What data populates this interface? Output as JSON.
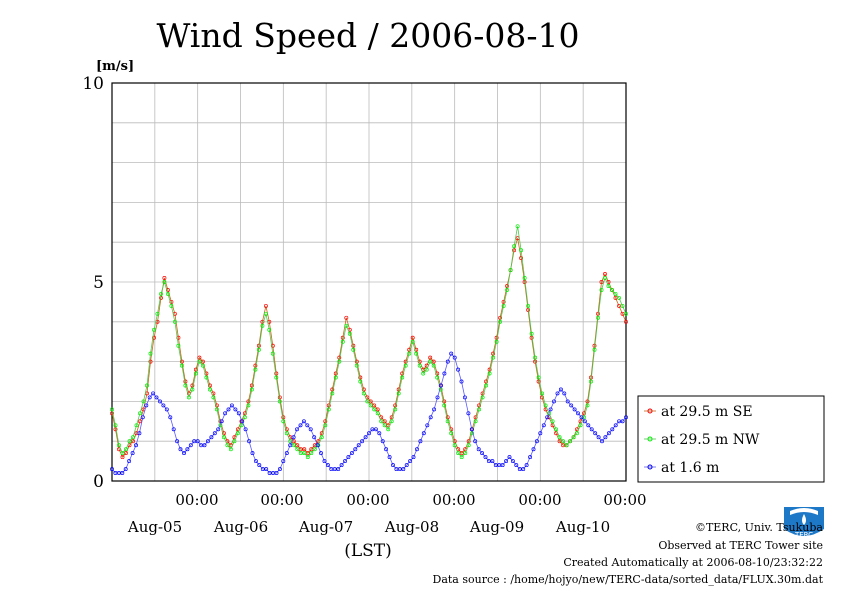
{
  "chart_data": {
    "type": "line",
    "title": "Wind Speed / 2006-08-10",
    "ylabel_unit": "[m/s]",
    "xlabel": "(LST)",
    "ylim": [
      0,
      10
    ],
    "y_ticks": [
      "0",
      "5",
      "10"
    ],
    "x_range_days": [
      0,
      6
    ],
    "x_major_ticks": [
      {
        "time": "00:00",
        "date": "Aug-05"
      },
      {
        "time": "00:00",
        "date": "Aug-06"
      },
      {
        "time": "00:00",
        "date": "Aug-07"
      },
      {
        "time": "00:00",
        "date": "Aug-08"
      },
      {
        "time": "00:00",
        "date": "Aug-09"
      },
      {
        "time": "00:00",
        "date": "Aug-10"
      }
    ],
    "grid": true,
    "legend_position": "right",
    "series": [
      {
        "name": "at 29.5 m SE",
        "color": "#ff0000",
        "values": [
          1.7,
          1.3,
          0.8,
          0.6,
          0.7,
          0.9,
          1.0,
          1.2,
          1.5,
          1.8,
          2.2,
          3.0,
          3.6,
          4.0,
          4.6,
          5.1,
          4.8,
          4.5,
          4.2,
          3.6,
          3.0,
          2.5,
          2.2,
          2.4,
          2.8,
          3.1,
          3.0,
          2.7,
          2.4,
          2.2,
          1.9,
          1.5,
          1.2,
          1.0,
          0.9,
          1.1,
          1.3,
          1.5,
          1.7,
          2.0,
          2.4,
          2.9,
          3.4,
          4.0,
          4.4,
          4.0,
          3.4,
          2.7,
          2.1,
          1.6,
          1.3,
          1.1,
          1.0,
          0.9,
          0.8,
          0.8,
          0.7,
          0.8,
          0.9,
          1.0,
          1.2,
          1.5,
          1.9,
          2.3,
          2.7,
          3.1,
          3.6,
          4.1,
          3.8,
          3.4,
          3.0,
          2.6,
          2.3,
          2.1,
          2.0,
          1.9,
          1.8,
          1.6,
          1.5,
          1.4,
          1.6,
          1.9,
          2.3,
          2.7,
          3.0,
          3.3,
          3.6,
          3.3,
          3.0,
          2.8,
          2.9,
          3.1,
          3.0,
          2.7,
          2.4,
          2.0,
          1.6,
          1.3,
          1.0,
          0.8,
          0.7,
          0.8,
          1.0,
          1.3,
          1.6,
          1.9,
          2.2,
          2.5,
          2.8,
          3.2,
          3.6,
          4.1,
          4.5,
          4.9,
          5.3,
          5.8,
          6.1,
          5.6,
          5.0,
          4.3,
          3.6,
          3.0,
          2.5,
          2.1,
          1.8,
          1.6,
          1.4,
          1.2,
          1.0,
          0.9,
          0.9,
          1.0,
          1.1,
          1.3,
          1.5,
          1.7,
          2.0,
          2.6,
          3.4,
          4.2,
          5.0,
          5.2,
          5.0,
          4.8,
          4.6,
          4.4,
          4.2,
          4.0
        ]
      },
      {
        "name": "at 29.5 m NW",
        "color": "#00ee00",
        "values": [
          1.8,
          1.4,
          0.9,
          0.7,
          0.8,
          1.0,
          1.1,
          1.4,
          1.7,
          2.0,
          2.4,
          3.2,
          3.8,
          4.2,
          4.7,
          5.0,
          4.7,
          4.4,
          4.0,
          3.4,
          2.9,
          2.4,
          2.1,
          2.3,
          2.7,
          3.0,
          2.9,
          2.6,
          2.3,
          2.1,
          1.8,
          1.4,
          1.1,
          0.9,
          0.8,
          1.0,
          1.2,
          1.4,
          1.6,
          1.9,
          2.3,
          2.8,
          3.3,
          3.9,
          4.2,
          3.8,
          3.2,
          2.6,
          2.0,
          1.5,
          1.2,
          1.0,
          0.9,
          0.8,
          0.7,
          0.7,
          0.6,
          0.7,
          0.8,
          0.9,
          1.1,
          1.4,
          1.8,
          2.2,
          2.6,
          3.0,
          3.5,
          3.9,
          3.7,
          3.3,
          2.9,
          2.5,
          2.2,
          2.0,
          1.9,
          1.8,
          1.7,
          1.5,
          1.4,
          1.3,
          1.5,
          1.8,
          2.2,
          2.6,
          2.9,
          3.2,
          3.5,
          3.2,
          2.9,
          2.7,
          2.8,
          3.0,
          2.9,
          2.6,
          2.3,
          1.9,
          1.5,
          1.2,
          0.9,
          0.7,
          0.6,
          0.7,
          0.9,
          1.2,
          1.5,
          1.8,
          2.1,
          2.4,
          2.7,
          3.1,
          3.5,
          4.0,
          4.4,
          4.8,
          5.3,
          5.9,
          6.4,
          5.8,
          5.1,
          4.4,
          3.7,
          3.1,
          2.6,
          2.2,
          1.9,
          1.7,
          1.5,
          1.3,
          1.1,
          1.0,
          0.9,
          1.0,
          1.1,
          1.2,
          1.4,
          1.6,
          1.9,
          2.5,
          3.3,
          4.1,
          4.8,
          5.1,
          4.9,
          4.8,
          4.7,
          4.6,
          4.4,
          4.2
        ]
      },
      {
        "name": "at 1.6 m",
        "color": "#0000ff",
        "values": [
          0.3,
          0.2,
          0.2,
          0.2,
          0.3,
          0.5,
          0.7,
          0.9,
          1.2,
          1.6,
          1.9,
          2.1,
          2.2,
          2.1,
          2.0,
          1.9,
          1.8,
          1.6,
          1.3,
          1.0,
          0.8,
          0.7,
          0.8,
          0.9,
          1.0,
          1.0,
          0.9,
          0.9,
          1.0,
          1.1,
          1.2,
          1.3,
          1.5,
          1.7,
          1.8,
          1.9,
          1.8,
          1.7,
          1.5,
          1.3,
          1.0,
          0.7,
          0.5,
          0.4,
          0.3,
          0.3,
          0.2,
          0.2,
          0.2,
          0.3,
          0.5,
          0.7,
          0.9,
          1.1,
          1.3,
          1.4,
          1.5,
          1.4,
          1.3,
          1.1,
          0.9,
          0.7,
          0.5,
          0.4,
          0.3,
          0.3,
          0.3,
          0.4,
          0.5,
          0.6,
          0.7,
          0.8,
          0.9,
          1.0,
          1.1,
          1.2,
          1.3,
          1.3,
          1.2,
          1.0,
          0.8,
          0.6,
          0.4,
          0.3,
          0.3,
          0.3,
          0.4,
          0.5,
          0.6,
          0.8,
          1.0,
          1.2,
          1.4,
          1.6,
          1.8,
          2.1,
          2.4,
          2.7,
          3.0,
          3.2,
          3.1,
          2.8,
          2.5,
          2.1,
          1.7,
          1.3,
          1.0,
          0.8,
          0.7,
          0.6,
          0.5,
          0.5,
          0.4,
          0.4,
          0.4,
          0.5,
          0.6,
          0.5,
          0.4,
          0.3,
          0.3,
          0.4,
          0.6,
          0.8,
          1.0,
          1.2,
          1.4,
          1.6,
          1.8,
          2.0,
          2.2,
          2.3,
          2.2,
          2.0,
          1.9,
          1.8,
          1.7,
          1.6,
          1.5,
          1.4,
          1.3,
          1.2,
          1.1,
          1.0,
          1.1,
          1.2,
          1.3,
          1.4,
          1.5,
          1.5,
          1.6
        ]
      }
    ]
  },
  "footer": {
    "copyright": "©TERC, Univ. Tsukuba",
    "observed": "Observed at TERC Tower site",
    "created": "Created Automatically at 2006-08-10/23:32:22",
    "source": "Data source : /home/hojyo/new/TERC-data/sorted_data/FLUX.30m.dat"
  },
  "logo": {
    "text": "TERC"
  }
}
